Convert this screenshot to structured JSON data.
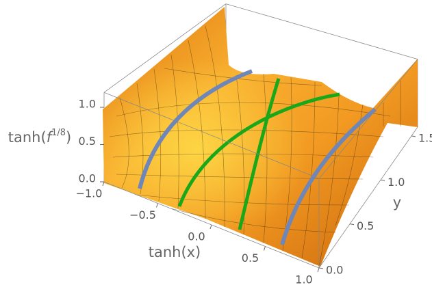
{
  "chart_data": {
    "type": "surface3d",
    "xlabel": "tanh(x)",
    "ylabel": "y",
    "zlabel": [
      "tanh(",
      "f",
      "1/8",
      ")"
    ],
    "xlim": [
      -1,
      1
    ],
    "ylim": [
      0,
      1.6
    ],
    "zlim": [
      0,
      1.2
    ],
    "xticks": [
      {
        "value": -1,
        "label": "−1.0"
      },
      {
        "value": -0.5,
        "label": "−0.5"
      },
      {
        "value": 0,
        "label": "0.0"
      },
      0.5,
      {
        "value": 1,
        "label": "1.0"
      }
    ],
    "yticks": [
      {
        "value": 0,
        "label": "0.0"
      },
      0.5,
      {
        "value": 1,
        "label": "1.0"
      },
      1.5
    ],
    "zticks": [
      {
        "value": 0,
        "label": "0.0"
      },
      0.5,
      {
        "value": 1,
        "label": "1.0"
      }
    ],
    "color": "#f5a623"
  }
}
